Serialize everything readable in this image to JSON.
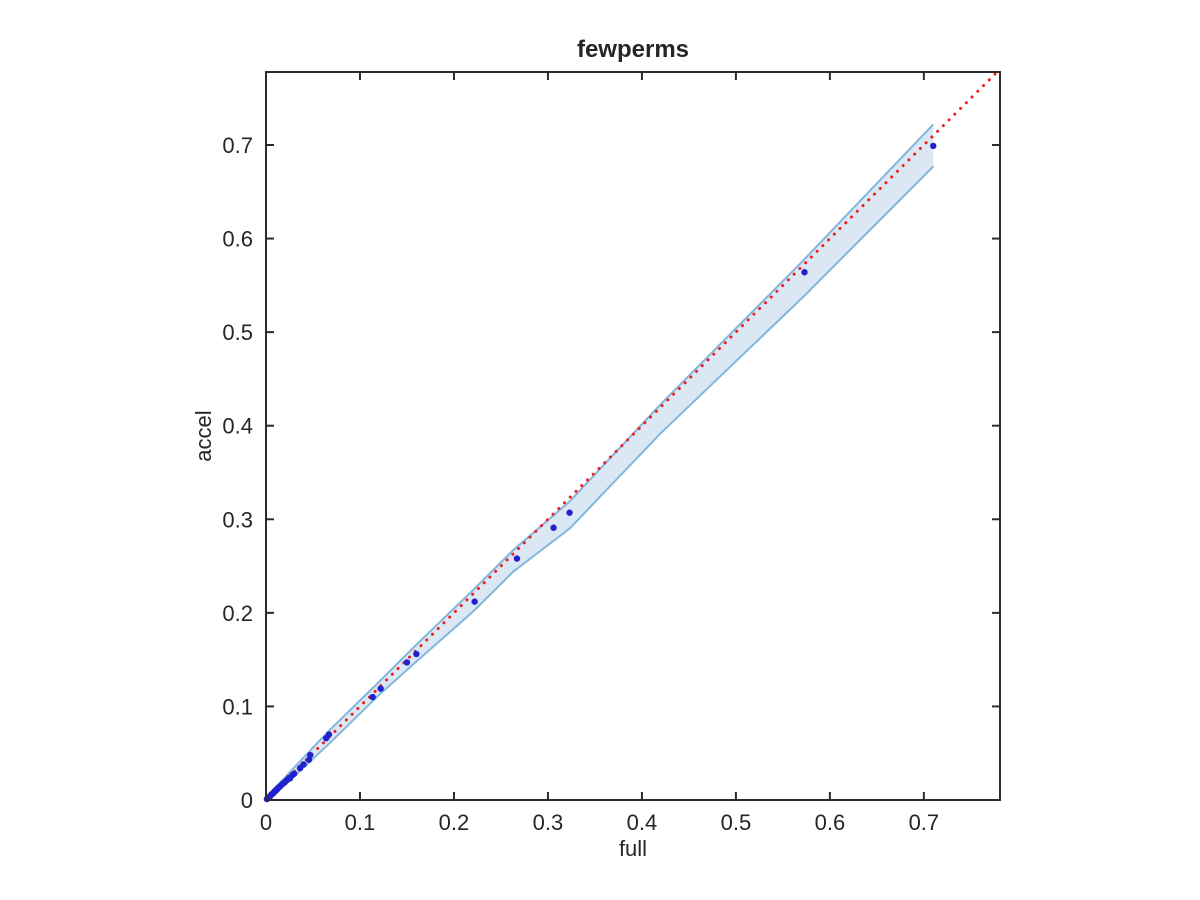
{
  "window": {
    "background": "#ffffff"
  },
  "chart_data": {
    "type": "scatter",
    "title": "fewperms",
    "xlabel": "full",
    "ylabel": "accel",
    "xlim": [
      0,
      0.781
    ],
    "ylim": [
      0,
      0.778
    ],
    "grid": false,
    "box": true,
    "tick_dir": "in",
    "axis_color": "#2b2b2b",
    "text_color": "#262626",
    "xticks": [
      0,
      0.1,
      0.2,
      0.3,
      0.4,
      0.5,
      0.6,
      0.7
    ],
    "xtick_labels": [
      "0",
      "0.1",
      "0.2",
      "0.3",
      "0.4",
      "0.5",
      "0.6",
      "0.7"
    ],
    "yticks": [
      0,
      0.1,
      0.2,
      0.3,
      0.4,
      0.5,
      0.6,
      0.7
    ],
    "ytick_labels": [
      "0",
      "0.1",
      "0.2",
      "0.3",
      "0.4",
      "0.5",
      "0.6",
      "0.7"
    ],
    "series": [
      {
        "name": "accel-vs-full-points",
        "marker": "point",
        "color": "#2121cd",
        "marker_radius_px": 3.2,
        "points": [
          [
            0.001,
            0.001
          ],
          [
            0.002,
            0.002
          ],
          [
            0.003,
            0.003
          ],
          [
            0.004,
            0.0035
          ],
          [
            0.005,
            0.005
          ],
          [
            0.006,
            0.006
          ],
          [
            0.0075,
            0.007
          ],
          [
            0.009,
            0.009
          ],
          [
            0.01,
            0.0095
          ],
          [
            0.011,
            0.011
          ],
          [
            0.012,
            0.0115
          ],
          [
            0.013,
            0.013
          ],
          [
            0.0145,
            0.014
          ],
          [
            0.016,
            0.0155
          ],
          [
            0.018,
            0.0175
          ],
          [
            0.02,
            0.019
          ],
          [
            0.022,
            0.021
          ],
          [
            0.0245,
            0.0235
          ],
          [
            0.0255,
            0.023
          ],
          [
            0.028,
            0.0265
          ],
          [
            0.03,
            0.028
          ],
          [
            0.0362,
            0.034
          ],
          [
            0.04,
            0.038
          ],
          [
            0.0457,
            0.043
          ],
          [
            0.047,
            0.048
          ],
          [
            0.064,
            0.066
          ],
          [
            0.067,
            0.07
          ],
          [
            0.1135,
            0.11
          ],
          [
            0.122,
            0.119
          ],
          [
            0.15,
            0.147
          ],
          [
            0.16,
            0.156
          ],
          [
            0.222,
            0.212
          ],
          [
            0.267,
            0.258
          ],
          [
            0.306,
            0.291
          ],
          [
            0.323,
            0.307
          ],
          [
            0.573,
            0.564
          ],
          [
            0.71,
            0.699
          ]
        ]
      }
    ],
    "reference_line": {
      "name": "identity-line",
      "style": "dotted",
      "color": "#f02020",
      "from": [
        0,
        0
      ],
      "to": [
        0.778,
        0.778
      ]
    },
    "confidence_band": {
      "fill": "#dbe8f4",
      "edge_color": "#82b6da",
      "points": [
        {
          "x": 0.0,
          "lo": 0.0,
          "hi": 0.003
        },
        {
          "x": 0.02,
          "lo": 0.016,
          "hi": 0.024
        },
        {
          "x": 0.05,
          "lo": 0.044,
          "hi": 0.056
        },
        {
          "x": 0.068,
          "lo": 0.061,
          "hi": 0.075
        },
        {
          "x": 0.12,
          "lo": 0.112,
          "hi": 0.126
        },
        {
          "x": 0.16,
          "lo": 0.148,
          "hi": 0.166
        },
        {
          "x": 0.22,
          "lo": 0.201,
          "hi": 0.224
        },
        {
          "x": 0.263,
          "lo": 0.244,
          "hi": 0.267
        },
        {
          "x": 0.323,
          "lo": 0.29,
          "hi": 0.319
        },
        {
          "x": 0.42,
          "lo": 0.392,
          "hi": 0.423
        },
        {
          "x": 0.573,
          "lo": 0.539,
          "hi": 0.578
        },
        {
          "x": 0.71,
          "lo": 0.677,
          "hi": 0.722
        }
      ]
    }
  }
}
